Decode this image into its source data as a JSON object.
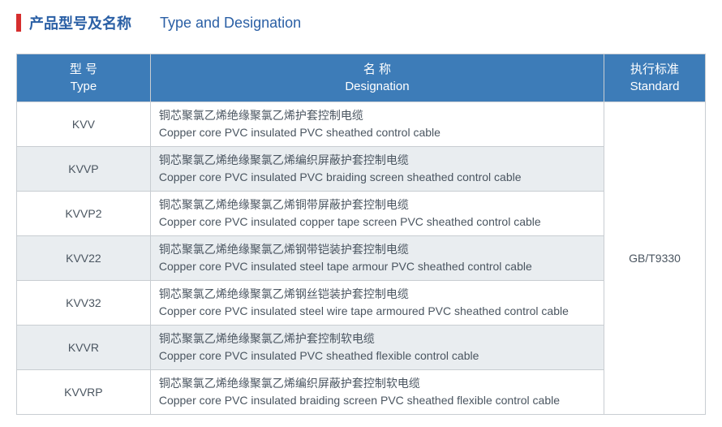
{
  "heading": {
    "cn": "产品型号及名称",
    "en": "Type and Designation"
  },
  "header": {
    "type_cn": "型  号",
    "type_en": "Type",
    "desig_cn": "名  称",
    "desig_en": "Designation",
    "std_cn": "执行标准",
    "std_en": "Standard"
  },
  "standard": "GB/T9330",
  "rows": [
    {
      "type": "KVV",
      "cn": "铜芯聚氯乙烯绝缘聚氯乙烯护套控制电缆",
      "en": "Copper core PVC insulated PVC sheathed control cable",
      "alt": false
    },
    {
      "type": "KVVP",
      "cn": "铜芯聚氯乙烯绝缘聚氯乙烯编织屏蔽护套控制电缆",
      "en": "Copper core PVC insulated PVC braiding screen sheathed control cable",
      "alt": true
    },
    {
      "type": "KVVP2",
      "cn": "铜芯聚氯乙烯绝缘聚氯乙烯铜带屏蔽护套控制电缆",
      "en": "Copper core PVC insulated copper tape screen PVC sheathed control cable",
      "alt": false
    },
    {
      "type": "KVV22",
      "cn": "铜芯聚氯乙烯绝缘聚氯乙烯钢带铠装护套控制电缆",
      "en": "Copper core PVC insulated steel tape armour PVC sheathed control cable",
      "alt": true
    },
    {
      "type": "KVV32",
      "cn": "铜芯聚氯乙烯绝缘聚氯乙烯钢丝铠装护套控制电缆",
      "en": "Copper core PVC insulated steel wire tape armoured PVC sheathed control cable",
      "alt": false
    },
    {
      "type": "KVVR",
      "cn": "铜芯聚氯乙烯绝缘聚氯乙烯护套控制软电缆",
      "en": "Copper core PVC insulated PVC sheathed flexible control cable",
      "alt": true
    },
    {
      "type": "KVVRP",
      "cn": "铜芯聚氯乙烯绝缘聚氯乙烯编织屏蔽护套控制软电缆",
      "en": "Copper core PVC insulated braiding screen PVC sheathed flexible control cable",
      "alt": false
    }
  ]
}
